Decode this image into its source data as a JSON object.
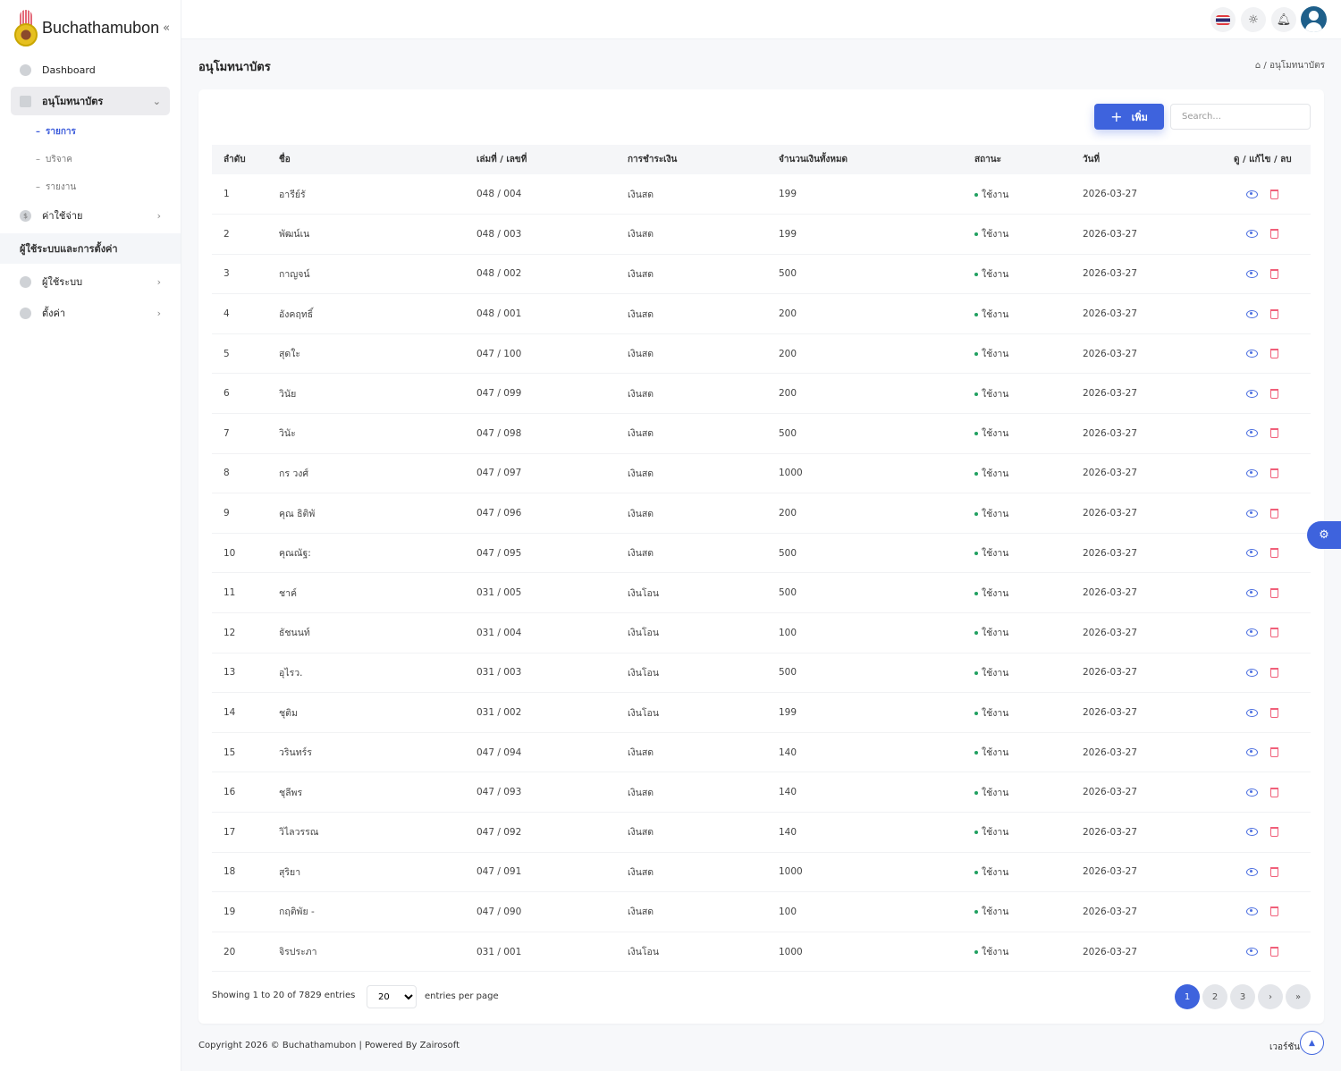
{
  "brand": {
    "name": "Buchathamubon",
    "collapse_icon": "double-chevron-left-icon"
  },
  "sidebar": {
    "dashboard": "Dashboard",
    "certificates": "อนุโมทนาบัตร",
    "sub": [
      "รายการ",
      "บริจาค",
      "รายงาน"
    ],
    "expenses": "ค่าใช้จ่าย",
    "section": "ผู้ใช้ระบบและการตั้งค่า",
    "users": "ผู้ใช้ระบบ",
    "settings": "ตั้งค่า"
  },
  "header": {
    "icons": [
      "thai-flag-icon",
      "sun-icon",
      "bell-icon",
      "user-avatar-icon"
    ]
  },
  "page": {
    "title": "อนุโมทนาบัตร",
    "breadcrumb_sep": "/",
    "breadcrumb_current": "อนุโมทนาบัตร"
  },
  "toolbar": {
    "add_label": "เพิ่ม",
    "search_placeholder": "Search..."
  },
  "table": {
    "headers": [
      "ลำดับ",
      "ชื่อ",
      "เล่มที่ / เลขที่",
      "การชำระเงิน",
      "จำนวนเงินทั้งหมด",
      "สถานะ",
      "วันที่",
      "ดู / แก้ไข / ลบ"
    ],
    "rows": [
      [
        "1",
        "อารีย์รั",
        "048 / 004",
        "เงินสด",
        "199",
        "ใช้งาน",
        "2026-03-27"
      ],
      [
        "2",
        "พัฒน์เน",
        "048 / 003",
        "เงินสด",
        "199",
        "ใช้งาน",
        "2026-03-27"
      ],
      [
        "3",
        "กาญจน์",
        "048 / 002",
        "เงินสด",
        "500",
        "ใช้งาน",
        "2026-03-27"
      ],
      [
        "4",
        "อังคฤทธิ์",
        "048 / 001",
        "เงินสด",
        "200",
        "ใช้งาน",
        "2026-03-27"
      ],
      [
        "5",
        "สุดใะ",
        "047 / 100",
        "เงินสด",
        "200",
        "ใช้งาน",
        "2026-03-27"
      ],
      [
        "6",
        "วินัย",
        "047 / 099",
        "เงินสด",
        "200",
        "ใช้งาน",
        "2026-03-27"
      ],
      [
        "7",
        "วินัะ",
        "047 / 098",
        "เงินสด",
        "500",
        "ใช้งาน",
        "2026-03-27"
      ],
      [
        "8",
        "กร วงศ์",
        "047 / 097",
        "เงินสด",
        "1000",
        "ใช้งาน",
        "2026-03-27"
      ],
      [
        "9",
        "คุณ ธิติพั",
        "047 / 096",
        "เงินสด",
        "200",
        "ใช้งาน",
        "2026-03-27"
      ],
      [
        "10",
        "คุณณัฐ:",
        "047 / 095",
        "เงินสด",
        "500",
        "ใช้งาน",
        "2026-03-27"
      ],
      [
        "11",
        "ชาค์",
        "031 / 005",
        "เงินโอน",
        "500",
        "ใช้งาน",
        "2026-03-27"
      ],
      [
        "12",
        "ธัชนนท์",
        "031 / 004",
        "เงินโอน",
        "100",
        "ใช้งาน",
        "2026-03-27"
      ],
      [
        "13",
        "อุไรว.",
        "031 / 003",
        "เงินโอน",
        "500",
        "ใช้งาน",
        "2026-03-27"
      ],
      [
        "14",
        "ชุติม",
        "031 / 002",
        "เงินโอน",
        "199",
        "ใช้งาน",
        "2026-03-27"
      ],
      [
        "15",
        "วรินทร์ร",
        "047 / 094",
        "เงินสด",
        "140",
        "ใช้งาน",
        "2026-03-27"
      ],
      [
        "16",
        "ชุลีพร",
        "047 / 093",
        "เงินสด",
        "140",
        "ใช้งาน",
        "2026-03-27"
      ],
      [
        "17",
        "วิไลวรรณ",
        "047 / 092",
        "เงินสด",
        "140",
        "ใช้งาน",
        "2026-03-27"
      ],
      [
        "18",
        "สุริยา",
        "047 / 091",
        "เงินสด",
        "1000",
        "ใช้งาน",
        "2026-03-27"
      ],
      [
        "19",
        "กฤติพัย -",
        "047 / 090",
        "เงินสด",
        "100",
        "ใช้งาน",
        "2026-03-27"
      ],
      [
        "20",
        "จิรประภา",
        "031 / 001",
        "เงินโอน",
        "1000",
        "ใช้งาน",
        "2026-03-27"
      ]
    ],
    "status_color": "#20a060"
  },
  "pagination": {
    "showing": "Showing 1 to 20 of 7829 entries",
    "per_page": "20",
    "per_page_label": "entries per page",
    "pages": [
      "1",
      "2",
      "3"
    ],
    "current": "1",
    "next": "›",
    "last": "»"
  },
  "footer": {
    "copyright": "Copyright 2026 © Buchathamubon | Powered By Zairosoft",
    "version": "เวอร์ชัน"
  },
  "colors": {
    "accent": "#3e63dd",
    "danger": "#f0607a"
  }
}
